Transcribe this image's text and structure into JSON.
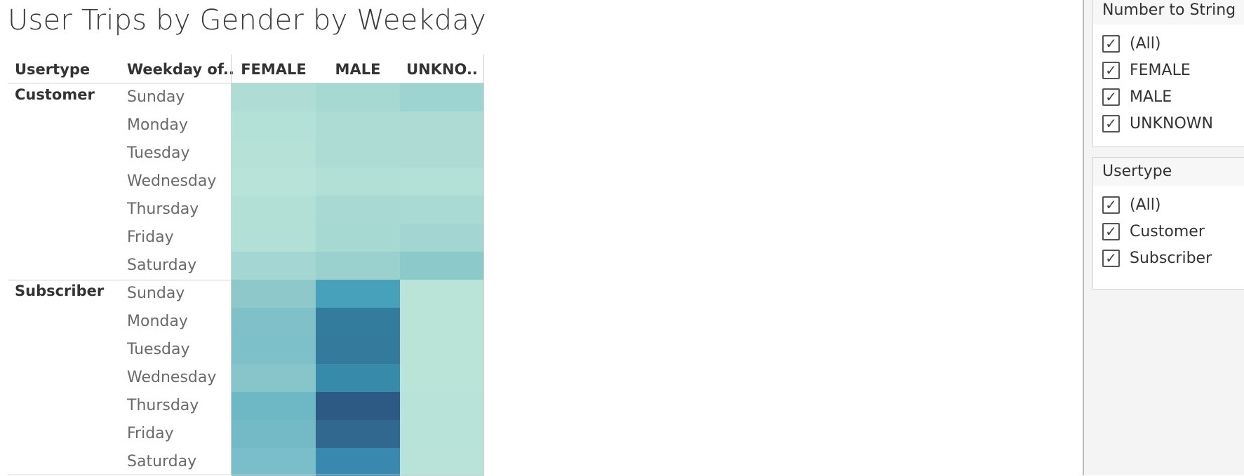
{
  "title": "User Trips by Gender by Weekday",
  "table": {
    "headers": {
      "usertype": "Usertype",
      "weekday": "Weekday of..",
      "columns": [
        "FEMALE",
        "MALE",
        "UNKNO.."
      ]
    },
    "groups": [
      {
        "label": "Customer",
        "days": [
          "Sunday",
          "Monday",
          "Tuesday",
          "Wednesday",
          "Thursday",
          "Friday",
          "Saturday"
        ],
        "colors": [
          [
            "#afdcd4",
            "#a7d9d3",
            "#9dd3d0"
          ],
          [
            "#b4e1d7",
            "#addcd5",
            "#aedcd5"
          ],
          [
            "#b5e1d7",
            "#add c d5",
            "#aedcd5"
          ],
          [
            "#b8e3d8",
            "#b2e0d6",
            "#b3e1d7"
          ],
          [
            "#b2dfd6",
            "#a8d9d3",
            "#a9dad4"
          ],
          [
            "#b2dfd6",
            "#a7d9d3",
            "#a3d6d2"
          ],
          [
            "#a4d7d3",
            "#9ad1cf",
            "#8cc9cb"
          ]
        ]
      },
      {
        "label": "Subscriber",
        "days": [
          "Sunday",
          "Monday",
          "Tuesday",
          "Wednesday",
          "Thursday",
          "Friday",
          "Saturday"
        ],
        "colors": [
          [
            "#8fc8cb",
            "#48a1bb",
            "#bae4d8"
          ],
          [
            "#80c0c9",
            "#347c9e",
            "#bae4d8"
          ],
          [
            "#7ec0c9",
            "#337a9c",
            "#bae4d8"
          ],
          [
            "#88c5ca",
            "#378aa9",
            "#bae4d8"
          ],
          [
            "#6eb7c5",
            "#2c5a85",
            "#b8e3d8"
          ],
          [
            "#73bac6",
            "#30688f",
            "#b8e3d8"
          ],
          [
            "#79bec8",
            "#3888b0",
            "#b9e3d8"
          ]
        ]
      }
    ]
  },
  "filters": [
    {
      "title": "Number to String",
      "options": [
        "(All)",
        "FEMALE",
        "MALE",
        "UNKNOWN"
      ]
    },
    {
      "title": "Usertype",
      "options": [
        "(All)",
        "Customer",
        "Subscriber"
      ]
    }
  ],
  "checkmark": "✓"
}
